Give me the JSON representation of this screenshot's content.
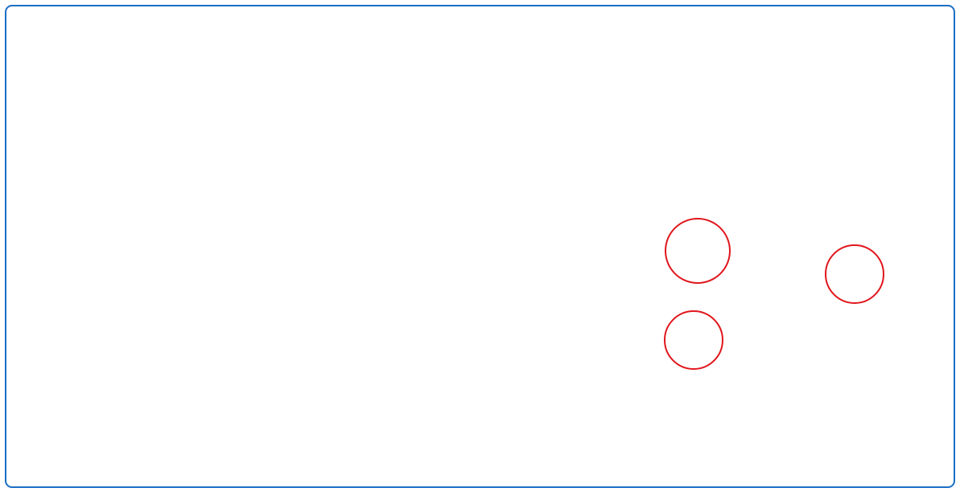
{
  "colors": {
    "frame_border": "#1a6fc4",
    "background": "#ffffff",
    "circle_stroke": "#e0161c"
  },
  "shapes": {
    "circles": [
      {
        "name": "circle-large",
        "shape": "circle"
      },
      {
        "name": "circle-small-bottom",
        "shape": "circle"
      },
      {
        "name": "circle-small-right",
        "shape": "circle"
      }
    ]
  }
}
